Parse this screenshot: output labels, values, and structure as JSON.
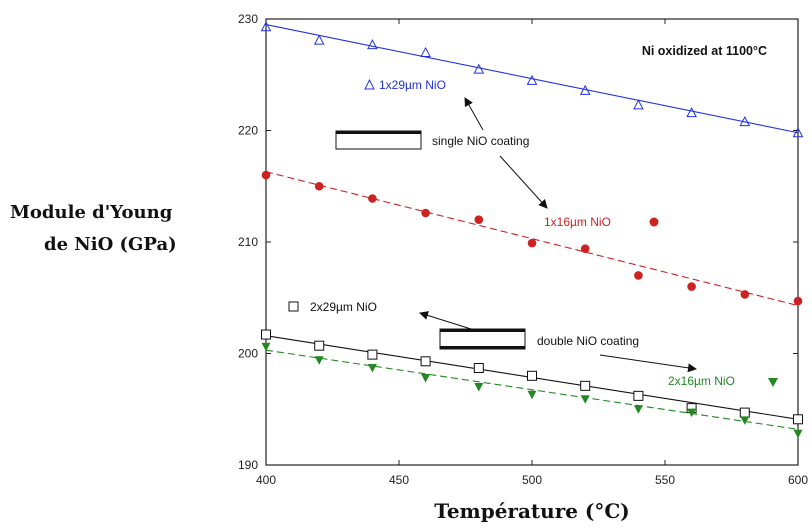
{
  "chart_data": {
    "type": "line",
    "title": "Ni oxidized at 1100°C",
    "xlabel": "Température (°C)",
    "ylabel": [
      "Module d'Young",
      "de NiO (GPa)"
    ],
    "xlim": [
      400,
      600
    ],
    "ylim": [
      190,
      230
    ],
    "xticks": [
      400,
      450,
      500,
      550,
      600
    ],
    "yticks": [
      190,
      200,
      210,
      220,
      230
    ],
    "grid": false,
    "series": [
      {
        "name": "1x29µm NiO",
        "marker": "triangle-open",
        "color": "#2233dd",
        "line_style": "solid",
        "x": [
          400,
          420,
          440,
          460,
          480,
          500,
          520,
          540,
          560,
          580,
          600
        ],
        "values": [
          229.3,
          228.1,
          227.7,
          227.0,
          225.5,
          224.5,
          223.6,
          222.3,
          221.6,
          220.8,
          219.8
        ],
        "fit": [
          229.5,
          219.8
        ]
      },
      {
        "name": "1x16µm NiO",
        "marker": "circle-filled",
        "color": "#cc2222",
        "line_style": "dashed",
        "x": [
          400,
          420,
          440,
          460,
          480,
          500,
          520,
          540,
          560,
          580,
          600
        ],
        "values": [
          216.0,
          215.0,
          213.9,
          212.6,
          212.0,
          209.9,
          209.4,
          207.0,
          206.0,
          205.3,
          204.7
        ],
        "fit": [
          216.3,
          204.3
        ]
      },
      {
        "name": "2x29µm NiO",
        "marker": "square-open",
        "color": "#111111",
        "line_style": "solid",
        "x": [
          400,
          420,
          440,
          460,
          480,
          500,
          520,
          540,
          560,
          580,
          600
        ],
        "values": [
          201.7,
          200.7,
          199.9,
          199.3,
          198.7,
          198.0,
          197.1,
          196.2,
          195.1,
          194.7,
          194.1
        ],
        "fit": [
          201.6,
          194.1
        ]
      },
      {
        "name": "2x16µm NiO",
        "marker": "triangle-down-filled",
        "color": "#228822",
        "line_style": "dashed",
        "x": [
          400,
          420,
          440,
          460,
          480,
          500,
          520,
          540,
          560,
          580,
          600
        ],
        "values": [
          200.6,
          199.4,
          198.7,
          197.8,
          197.0,
          196.3,
          195.9,
          195.0,
          194.7,
          194.0,
          192.8
        ],
        "fit": [
          200.3,
          193.2
        ]
      }
    ],
    "annotations": {
      "single_coating": "single NiO coating",
      "double_coating": "double NiO coating"
    }
  }
}
